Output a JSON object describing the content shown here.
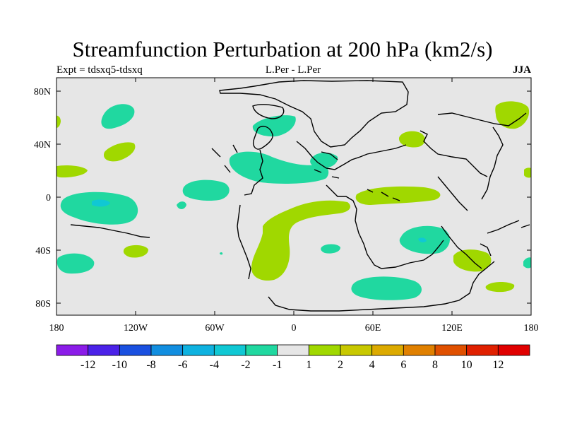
{
  "title": "Streamfunction Perturbation at 200 hPa (km2/s)",
  "subtitle_left": "Expt = tdsxq5-tdsxq",
  "subtitle_center": "L.Per - L.Per",
  "subtitle_right": "JJA",
  "axes": {
    "x_ticks": [
      "180",
      "120W",
      "60W",
      "0",
      "60E",
      "120E",
      "180"
    ],
    "y_ticks": [
      "80N",
      "40N",
      "0",
      "40S",
      "80S"
    ]
  },
  "colorbar": {
    "labels": [
      "-12",
      "-10",
      "-8",
      "-6",
      "-4",
      "-2",
      "-1",
      "1",
      "2",
      "4",
      "6",
      "8",
      "10",
      "12"
    ],
    "colors": [
      "#8b1ce8",
      "#4b22e8",
      "#1a50e0",
      "#128ee0",
      "#0fb2e0",
      "#10c8d4",
      "#20d8a0",
      "#e6e6e6",
      "#a0d800",
      "#c8c800",
      "#dcaa00",
      "#e08000",
      "#e05000",
      "#e02000",
      "#e00000"
    ]
  },
  "colors": {
    "ocean": "#e6e6e6",
    "neg_light": "#20d8a0",
    "neg_mid": "#10c8d4",
    "pos_light": "#a0d800"
  }
}
